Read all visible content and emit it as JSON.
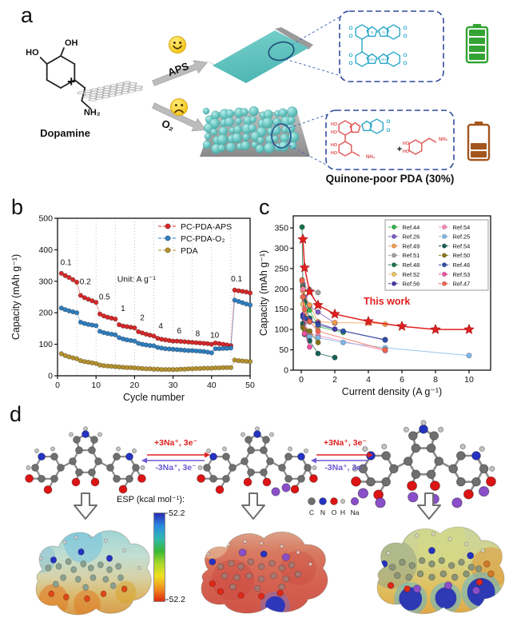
{
  "panel_labels": {
    "a": "a",
    "b": "b",
    "c": "c",
    "d": "d"
  },
  "schematic": {
    "reactant": {
      "ho": "HO",
      "oh": "OH",
      "amine": "NH₂",
      "name": "Dopamine"
    },
    "plus": "+",
    "route_top": {
      "condition": "APS",
      "mood": "happy"
    },
    "route_bottom": {
      "condition": "O₂",
      "mood": "sad"
    },
    "product_label": "Quinone-poor PDA (30%)",
    "structure_labels": {
      "o": "O",
      "n": "N",
      "nh": "NH",
      "ho": "HO",
      "nh2": "NH₂"
    },
    "colors": {
      "film": "#5fc4c0",
      "particle": "#6cc8c4",
      "box_border": "#2f4b9e",
      "battery_full": "#33a433",
      "battery_low": "#a2561f",
      "structure_top": "#2ba8c8",
      "structure_bottom": "#e05252"
    }
  },
  "chart_data": [
    {
      "panel": "b",
      "type": "scatter",
      "xlabel": "Cycle number",
      "ylabel": "Capacity (mAh g⁻¹)",
      "xlim": [
        0,
        50
      ],
      "ylim": [
        0,
        500
      ],
      "xticks": [
        0,
        10,
        20,
        30,
        40,
        50
      ],
      "yticks": [
        0,
        100,
        200,
        300,
        400,
        500
      ],
      "grid": "dotted vertical every 5 cycles",
      "unit_note": "Unit: A g⁻¹",
      "rate_labels": [
        {
          "text": "0.1",
          "x": 2.2,
          "y": 352
        },
        {
          "text": "0.2",
          "x": 7.2,
          "y": 290
        },
        {
          "text": "0.5",
          "x": 12.2,
          "y": 242
        },
        {
          "text": "1",
          "x": 17,
          "y": 205
        },
        {
          "text": "2",
          "x": 22,
          "y": 176
        },
        {
          "text": "4",
          "x": 26.8,
          "y": 150
        },
        {
          "text": "6",
          "x": 31.6,
          "y": 134
        },
        {
          "text": "8",
          "x": 36.4,
          "y": 126
        },
        {
          "text": "10",
          "x": 40.8,
          "y": 120
        },
        {
          "text": "0.1",
          "x": 46.5,
          "y": 300
        }
      ],
      "series": [
        {
          "name": "PC-PDA-APS",
          "color": "#d8282a",
          "values": [
            325,
            318,
            312,
            305,
            297,
            255,
            248,
            243,
            238,
            233,
            196,
            190,
            186,
            183,
            180,
            162,
            158,
            156,
            154,
            152,
            140,
            136,
            132,
            129,
            126,
            119,
            116,
            114,
            112,
            110,
            110,
            109,
            108,
            107,
            106,
            105,
            104,
            103,
            102,
            100,
            104,
            102,
            100,
            98,
            96,
            272,
            270,
            268,
            266,
            263
          ]
        },
        {
          "name": "PC-PDA-O₂",
          "color": "#2f7fc1",
          "values": [
            215,
            210,
            206,
            203,
            200,
            170,
            166,
            163,
            161,
            159,
            141,
            137,
            134,
            132,
            130,
            121,
            117,
            114,
            112,
            110,
            103,
            100,
            98,
            96,
            95,
            90,
            88,
            86,
            85,
            84,
            83,
            82,
            81,
            80,
            80,
            79,
            78,
            77,
            75,
            73,
            86,
            86,
            87,
            87,
            88,
            240,
            236,
            232,
            228,
            225
          ]
        },
        {
          "name": "PDA",
          "color": "#b6922e",
          "values": [
            70,
            64,
            60,
            57,
            54,
            48,
            45,
            43,
            41,
            39,
            34,
            32,
            31,
            30,
            29,
            28,
            27,
            26,
            26,
            25,
            24,
            23,
            22,
            22,
            21,
            21,
            20,
            20,
            20,
            20,
            20,
            21,
            21,
            22,
            22,
            23,
            23,
            24,
            24,
            24,
            25,
            25,
            26,
            26,
            26,
            50,
            48,
            47,
            46,
            45
          ]
        }
      ]
    },
    {
      "panel": "c",
      "type": "line-scatter",
      "xlabel": "Current density (A g⁻¹)",
      "ylabel": "Capacity (mAh g⁻¹)",
      "xlim": [
        0,
        11
      ],
      "ylim": [
        0,
        370
      ],
      "xticks": [
        0,
        2,
        4,
        6,
        8,
        10
      ],
      "yticks": [
        0,
        50,
        100,
        150,
        200,
        250,
        300,
        350
      ],
      "annotation": "This work",
      "legend_position": "top-right",
      "highlight": {
        "name": "This work",
        "color": "#e01f1f",
        "marker": "star",
        "points": [
          [
            0.1,
            322
          ],
          [
            0.2,
            252
          ],
          [
            0.5,
            193
          ],
          [
            1,
            160
          ],
          [
            2,
            138
          ],
          [
            4,
            120
          ],
          [
            6,
            108
          ],
          [
            8,
            100
          ],
          [
            10,
            100
          ]
        ]
      },
      "series": [
        {
          "name": "Ref.44",
          "color": "#35b44a",
          "points": [
            [
              0.1,
              198
            ],
            [
              0.2,
              170
            ],
            [
              0.5,
              148
            ],
            [
              1,
              107
            ],
            [
              2.5,
              93
            ]
          ]
        },
        {
          "name": "Ref.26",
          "color": "#7a5bbf",
          "points": [
            [
              0.1,
              212
            ],
            [
              0.2,
              180
            ],
            [
              0.5,
              158
            ],
            [
              1,
              143
            ],
            [
              2,
              116
            ]
          ]
        },
        {
          "name": "Ref.49",
          "color": "#f59b4e",
          "points": [
            [
              0.05,
              222
            ],
            [
              0.1,
              195
            ],
            [
              0.5,
              160
            ],
            [
              1,
              119
            ],
            [
              2,
              117
            ],
            [
              4,
              116
            ],
            [
              5,
              113
            ]
          ]
        },
        {
          "name": "Ref.51",
          "color": "#a0a0a0",
          "points": [
            [
              0.1,
              208
            ],
            [
              0.5,
              198
            ],
            [
              1,
              191
            ]
          ]
        },
        {
          "name": "Ref.48",
          "color": "#187048",
          "points": [
            [
              0.05,
              352
            ],
            [
              0.1,
              205
            ],
            [
              0.2,
              166
            ],
            [
              0.5,
              128
            ]
          ]
        },
        {
          "name": "Ref.52",
          "color": "#ecc35e",
          "points": [
            [
              0.1,
              162
            ],
            [
              0.2,
              140
            ],
            [
              0.5,
              122
            ],
            [
              1,
              108
            ]
          ]
        },
        {
          "name": "Ref.56",
          "color": "#4b36a8",
          "points": [
            [
              0.1,
              136
            ],
            [
              0.2,
              126
            ],
            [
              0.5,
              119
            ],
            [
              1,
              116
            ],
            [
              2,
              101
            ],
            [
              5,
              75
            ]
          ]
        },
        {
          "name": "Ref.54",
          "color": "#f78ab8",
          "points": [
            [
              0.1,
              200
            ],
            [
              0.2,
              118
            ],
            [
              0.5,
              90
            ],
            [
              1,
              85
            ],
            [
              5,
              48
            ]
          ]
        },
        {
          "name": "Ref.25",
          "color": "#7fb5e6",
          "points": [
            [
              0.1,
              110
            ],
            [
              0.5,
              82
            ],
            [
              1,
              80
            ],
            [
              2.5,
              68
            ],
            [
              5,
              55
            ],
            [
              10,
              36
            ]
          ]
        },
        {
          "name": "Ref.54",
          "color": "#166058",
          "points": [
            [
              0.1,
              115
            ],
            [
              0.2,
              88
            ],
            [
              0.5,
              72
            ],
            [
              1,
              41
            ],
            [
              2,
              31
            ]
          ]
        },
        {
          "name": "Ref.50",
          "color": "#857618",
          "points": [
            [
              0.1,
              105
            ],
            [
              0.2,
              99
            ],
            [
              0.5,
              96
            ],
            [
              1,
              68
            ]
          ]
        },
        {
          "name": "Ref.46",
          "color": "#2d4fa8",
          "points": [
            [
              0.1,
              131
            ],
            [
              0.3,
              127
            ],
            [
              0.5,
              125
            ],
            [
              1,
              111
            ],
            [
              2.5,
              96
            ],
            [
              5,
              74
            ]
          ]
        },
        {
          "name": "Ref.53",
          "color": "#ef4fa0",
          "points": [
            [
              0.1,
              180
            ],
            [
              0.2,
              90
            ],
            [
              0.5,
              57
            ]
          ]
        },
        {
          "name": "Ref.47",
          "color": "#f2654f",
          "points": [
            [
              0.05,
              220
            ],
            [
              0.1,
              180
            ],
            [
              0.2,
              150
            ],
            [
              0.5,
              120
            ],
            [
              1,
              96
            ],
            [
              5,
              50
            ]
          ]
        }
      ]
    }
  ],
  "dft": {
    "reaction_forward": "+3Na⁺, 3e⁻",
    "reaction_backward": "-3Na⁺, 3e⁻",
    "esp_label": "ESP (kcal mol⁻¹):",
    "esp_max": "52.2",
    "esp_min": "-52.2",
    "esp_gradient": [
      "#2a2ab4",
      "#2a8ae0",
      "#30b8b0",
      "#38b838",
      "#a8d828",
      "#f0e020",
      "#f09020",
      "#e02810"
    ],
    "atoms": [
      {
        "symbol": "C",
        "color": "#6f6f6f",
        "r": 4.5
      },
      {
        "symbol": "N",
        "color": "#2433c0",
        "r": 4.5
      },
      {
        "symbol": "O",
        "color": "#dc1414",
        "r": 4.5
      },
      {
        "symbol": "H",
        "color": "#c4c4c4",
        "r": 2.6
      },
      {
        "symbol": "Na",
        "color": "#8a4fc8",
        "r": 4.8
      }
    ]
  }
}
